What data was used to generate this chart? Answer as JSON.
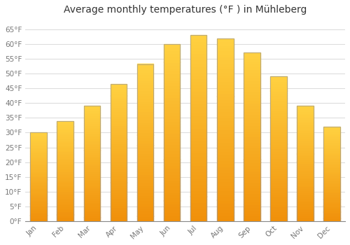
{
  "title": "Average monthly temperatures (°F ) in Mühleberg",
  "months": [
    "Jan",
    "Feb",
    "Mar",
    "Apr",
    "May",
    "Jun",
    "Jul",
    "Aug",
    "Sep",
    "Oct",
    "Nov",
    "Dec"
  ],
  "values": [
    30.2,
    33.8,
    39.0,
    46.4,
    53.2,
    59.9,
    63.1,
    61.9,
    57.2,
    49.1,
    39.2,
    32.0
  ],
  "bar_color_top": "#FFD040",
  "bar_color_bottom": "#F0900A",
  "bar_edge_color": "#999999",
  "background_color": "#ffffff",
  "grid_color": "#dddddd",
  "ytick_labels": [
    "0°F",
    "5°F",
    "10°F",
    "15°F",
    "20°F",
    "25°F",
    "30°F",
    "35°F",
    "40°F",
    "45°F",
    "50°F",
    "55°F",
    "60°F",
    "65°F"
  ],
  "ytick_values": [
    0,
    5,
    10,
    15,
    20,
    25,
    30,
    35,
    40,
    45,
    50,
    55,
    60,
    65
  ],
  "ylim": [
    0,
    68
  ],
  "title_fontsize": 10,
  "tick_fontsize": 7.5,
  "tick_color": "#777777",
  "title_color": "#333333"
}
